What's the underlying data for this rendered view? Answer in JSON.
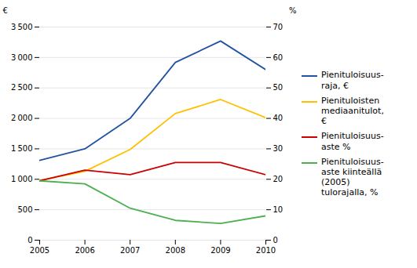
{
  "chart_data": {
    "type": "line",
    "ylabel": "€",
    "y2label": "%",
    "x": [
      2005,
      2006,
      2007,
      2008,
      2009,
      2010
    ],
    "xlim": [
      2005,
      2010
    ],
    "xticks": [
      2005,
      2006,
      2007,
      2008,
      2009,
      2010
    ],
    "ylim": [
      0,
      3500
    ],
    "yticks": [
      0,
      500,
      {
        "value": 1000,
        "label": "1 000"
      },
      {
        "value": 1500,
        "label": "1 500"
      },
      {
        "value": 2000,
        "label": "2 000"
      },
      {
        "value": 2500,
        "label": "2 500"
      },
      {
        "value": 3000,
        "label": "3 000"
      },
      {
        "value": 3500,
        "label": "3 500"
      }
    ],
    "y2lim": [
      0,
      70
    ],
    "y2ticks": [
      0,
      10,
      20,
      30,
      40,
      50,
      60,
      70
    ],
    "grid": true,
    "legend": "right",
    "series": [
      {
        "name": "Pienituloisuus-\nraja, €",
        "color": "#2253A0",
        "values": [
          1310,
          1500,
          2000,
          2920,
          3270,
          2800
        ]
      },
      {
        "name": "Pienituloisten\nmediaanitulot,\n€",
        "color": "#FFC000",
        "values": [
          980,
          1130,
          1490,
          2080,
          2310,
          2010
        ]
      },
      {
        "name": "Pienituloisuus-\naste %",
        "color": "#CC0000",
        "values": [
          19.5,
          23.0,
          21.5,
          25.5,
          25.5,
          21.5
        ],
        "axis": "y2"
      },
      {
        "name": "Pienituloisuus-\naste kiinteällä\n(2005)\ntulorajalla, %",
        "color": "#4CAF50",
        "values": [
          19.5,
          18.5,
          10.5,
          6.5,
          5.5,
          8.0
        ],
        "axis": "y2"
      }
    ]
  }
}
